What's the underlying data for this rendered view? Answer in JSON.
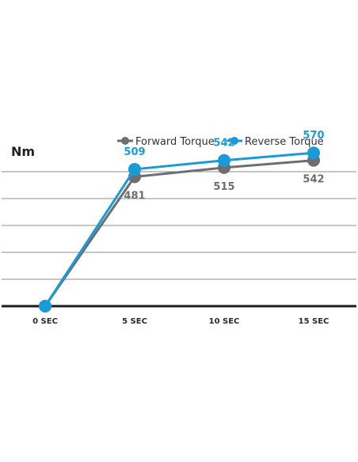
{
  "chart_data": {
    "type": "line",
    "title": "",
    "ylabel": "Nm",
    "xlabel": "",
    "categories": [
      "0 SEC",
      "5 SEC",
      "10 SEC",
      "15 SEC"
    ],
    "ylim": [
      0,
      600
    ],
    "y_gridlines": [
      100,
      200,
      300,
      400,
      500
    ],
    "grid": true,
    "legend_position": "top-right",
    "series": [
      {
        "name": "Forward Torque",
        "values": [
          0,
          481,
          515,
          542
        ],
        "color": "#6d6e71",
        "label_position": "below"
      },
      {
        "name": "Reverse Torque",
        "values": [
          0,
          509,
          542,
          570
        ],
        "color": "#1a9bd7",
        "label_position": "above"
      }
    ]
  }
}
